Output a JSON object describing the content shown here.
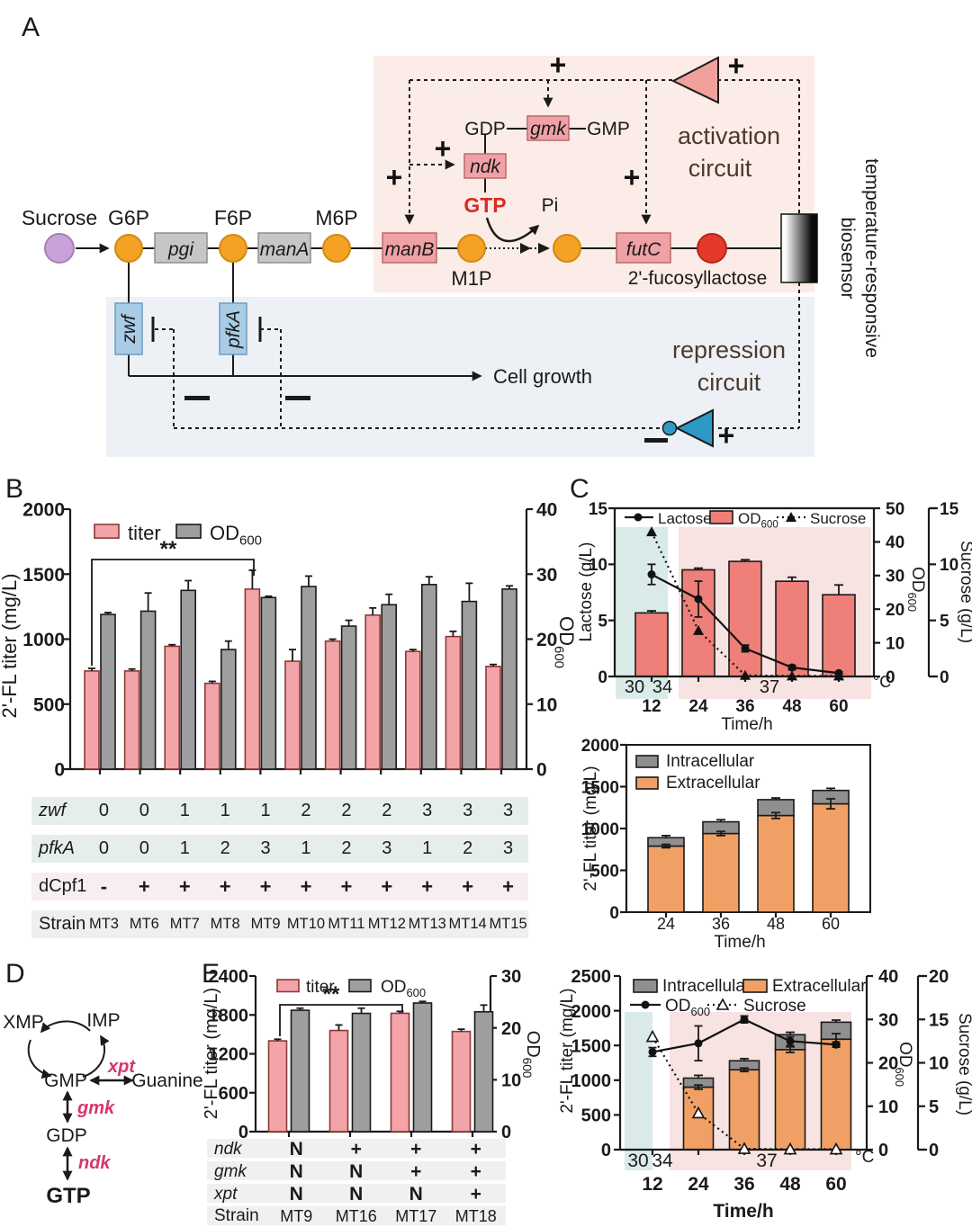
{
  "figure": {
    "panel_labels": {
      "A": "A",
      "B": "B",
      "C": "C",
      "D": "D",
      "E": "E"
    }
  },
  "panelA": {
    "metabolites": {
      "sucrose": "Sucrose",
      "g6p": "G6P",
      "f6p": "F6P",
      "m6p": "M6P",
      "m1p": "M1P",
      "gdp": "GDP",
      "gmp": "GMP",
      "gtp": "GTP",
      "pi": "Pi",
      "product": "2'-fucosyllactose",
      "cell_growth": "Cell growth"
    },
    "genes": {
      "pgi": "pgi",
      "manA": "manA",
      "manB": "manB",
      "futC": "futC",
      "gmk": "gmk",
      "ndk": "ndk",
      "zwf": "zwf",
      "pfkA": "pfkA"
    },
    "activation_line1": "activation",
    "activation_line2": "circuit",
    "repression_line1": "repression",
    "repression_line2": "circuit",
    "biosensor_line1": "temperature-responsive",
    "biosensor_line2": "biosensor",
    "plus": "+",
    "colors": {
      "activation_bg": "#fbece7",
      "repression_bg": "#edf1f5",
      "orange_node": "#f3a226",
      "purple_node": "#c8a2d8",
      "red_node": "#e4392b",
      "pink_gene": "#f0a1a6",
      "gray_gene": "#c6c6c6",
      "blue_gene": "#a9cce6",
      "act_triangle": "#f2a09c",
      "rep_triangle": "#2f99c5",
      "gtp_red": "#d92b1f"
    }
  },
  "panelD": {
    "xmp": "XMP",
    "imp": "IMP",
    "gmp": "GMP",
    "guanine": "Guanine",
    "gdp": "GDP",
    "gtp": "GTP",
    "xpt": "xpt",
    "gmk": "gmk",
    "ndk": "ndk",
    "gene_color": "#d6366f"
  },
  "tableB": {
    "rows": [
      {
        "label": "zwf",
        "italic": true,
        "bg": "#e6eeea",
        "values": [
          "0",
          "0",
          "1",
          "1",
          "1",
          "2",
          "2",
          "2",
          "3",
          "3",
          "3"
        ]
      },
      {
        "label": "pfkA",
        "italic": true,
        "bg": "#e6eeea",
        "values": [
          "0",
          "0",
          "1",
          "2",
          "3",
          "1",
          "2",
          "3",
          "1",
          "2",
          "3"
        ]
      },
      {
        "label": "dCpf1",
        "italic": false,
        "bg": "#f6eef1",
        "values": [
          "-",
          "+",
          "+",
          "+",
          "+",
          "+",
          "+",
          "+",
          "+",
          "+",
          "+"
        ]
      },
      {
        "label": "Strain",
        "italic": false,
        "bg": "#efeef0",
        "values": [
          "MT3",
          "MT6",
          "MT7",
          "MT8",
          "MT9",
          "MT10",
          "MT11",
          "MT12",
          "MT13",
          "MT14",
          "MT15"
        ]
      }
    ]
  },
  "tableE": {
    "rows": [
      {
        "label": "ndk",
        "italic": true,
        "bg": "#f0eff1",
        "values": [
          "N",
          "+",
          "+",
          "+"
        ]
      },
      {
        "label": "gmk",
        "italic": true,
        "bg": "#f0eff1",
        "values": [
          "N",
          "N",
          "+",
          "+"
        ]
      },
      {
        "label": "xpt",
        "italic": true,
        "bg": "#f0eff1",
        "values": [
          "N",
          "N",
          "N",
          "+"
        ]
      },
      {
        "label": "Strain",
        "italic": false,
        "bg": "#f0eff1",
        "values": [
          "MT9",
          "MT16",
          "MT17",
          "MT18"
        ]
      }
    ]
  },
  "chart_data": [
    {
      "id": "B",
      "type": "bar",
      "title": "",
      "ylabel": "2'-FL titer (mg/L)",
      "ylim": [
        0,
        2000
      ],
      "yticks": [
        0,
        500,
        1000,
        1500,
        2000
      ],
      "y2label": "OD600",
      "y2lim": [
        0,
        40
      ],
      "y2ticks": [
        0,
        10,
        20,
        30,
        40
      ],
      "categories": [
        "MT3",
        "MT6",
        "MT7",
        "MT8",
        "MT9",
        "MT10",
        "MT11",
        "MT12",
        "MT13",
        "MT14",
        "MT15"
      ],
      "series": [
        {
          "name": "titer",
          "axis": "left",
          "color": "#f2a4a9",
          "values": [
            755,
            755,
            945,
            660,
            1385,
            830,
            985,
            1185,
            905,
            1020,
            790
          ],
          "errors": [
            20,
            15,
            12,
            15,
            145,
            90,
            15,
            55,
            15,
            40,
            15
          ]
        },
        {
          "name": "OD600",
          "axis": "right",
          "color": "#9e9e9e",
          "values": [
            23.8,
            24.3,
            27.5,
            18.4,
            26.4,
            28.1,
            22.0,
            25.3,
            28.4,
            25.8,
            27.7
          ],
          "errors": [
            0.3,
            2.8,
            1.5,
            1.3,
            0.2,
            1.6,
            0.9,
            1.6,
            1.2,
            2.8,
            0.5
          ]
        }
      ],
      "significance": {
        "label": "**",
        "from": 0,
        "to": 4
      },
      "legend_position": "top-left",
      "grid": false
    },
    {
      "id": "C1",
      "type": "bar+line",
      "ylabel": "Lactose (g/L)",
      "ylim": [
        0,
        15
      ],
      "yticks": [
        0,
        5,
        10,
        15
      ],
      "y2label": "OD600",
      "y2lim": [
        0,
        50
      ],
      "y2ticks": [
        0,
        10,
        20,
        30,
        40,
        50
      ],
      "y3label": "Sucrose (g/L)",
      "y3lim": [
        0,
        15
      ],
      "y3ticks": [
        0,
        5,
        10,
        15
      ],
      "xlabel": "Time/h",
      "categories": [
        "12",
        "24",
        "36",
        "48",
        "60"
      ],
      "bars": {
        "name": "OD600",
        "axis": "y2",
        "color": "#ef7f79",
        "values": [
          18.9,
          31.7,
          34.2,
          28.3,
          24.3
        ],
        "errors": [
          0.6,
          0.5,
          0.5,
          1.2,
          2.9
        ]
      },
      "lines": [
        {
          "name": "Lactose",
          "axis": "y1",
          "marker": "circle",
          "style": "solid",
          "values": [
            9.1,
            6.9,
            2.5,
            0.8,
            0.3
          ],
          "errors": [
            0.9,
            1.6,
            0.3,
            0.2,
            0.1
          ]
        },
        {
          "name": "Sucrose",
          "axis": "y3",
          "marker": "triangle",
          "style": "dotted",
          "values": [
            12.9,
            4.1,
            0.1,
            0.05,
            0.05
          ],
          "errors": [
            0.4,
            0.4,
            0,
            0,
            0
          ]
        }
      ],
      "temperature_bands": {
        "labels": [
          "30",
          "34",
          "37"
        ],
        "unit": "°C",
        "teal": "#d9eae9",
        "pink": "#f7e3e1"
      }
    },
    {
      "id": "C2",
      "type": "stacked-bar",
      "ylabel": "2'-FL titer (mg/L)",
      "ylim": [
        0,
        2000
      ],
      "yticks": [
        0,
        500,
        1000,
        1500,
        2000
      ],
      "xlabel": "Time/h",
      "categories": [
        "24",
        "36",
        "48",
        "60"
      ],
      "series": [
        {
          "name": "Extracellular",
          "color": "#f0a064",
          "values": [
            790,
            940,
            1155,
            1295
          ],
          "errors": [
            20,
            25,
            35,
            60
          ]
        },
        {
          "name": "Intracellular",
          "color": "#8f8f8f",
          "values": [
            100,
            140,
            190,
            160
          ],
          "errors": [
            25,
            25,
            20,
            25
          ]
        }
      ]
    },
    {
      "id": "E",
      "type": "bar",
      "ylabel": "2'-FL titer (mg/L)",
      "ylim": [
        0,
        2400
      ],
      "yticks": [
        0,
        600,
        1200,
        1800,
        2400
      ],
      "y2label": "OD600",
      "y2lim": [
        0,
        30
      ],
      "y2ticks": [
        0,
        10,
        20,
        30
      ],
      "categories": [
        "MT9",
        "MT16",
        "MT17",
        "MT18"
      ],
      "series": [
        {
          "name": "titer",
          "axis": "left",
          "color": "#f2a4a9",
          "values": [
            1400,
            1560,
            1825,
            1545
          ],
          "errors": [
            25,
            85,
            30,
            35
          ]
        },
        {
          "name": "OD600",
          "axis": "right",
          "color": "#9e9e9e",
          "values": [
            23.4,
            22.8,
            24.8,
            23.1
          ],
          "errors": [
            0.4,
            1.0,
            0.3,
            1.3
          ]
        }
      ],
      "significance": {
        "label": "**",
        "from": 0,
        "to": 2
      }
    },
    {
      "id": "F",
      "type": "stacked-bar+line",
      "ylabel": "2'-FL titer (mg/L)",
      "ylim": [
        0,
        2500
      ],
      "yticks": [
        0,
        500,
        1000,
        1500,
        2000,
        2500
      ],
      "y2label": "OD600",
      "y2lim": [
        0,
        40
      ],
      "y2ticks": [
        0,
        10,
        20,
        30,
        40
      ],
      "y3label": "Sucrose (g/L)",
      "y3lim": [
        0,
        20
      ],
      "y3ticks": [
        0,
        5,
        10,
        15,
        20
      ],
      "xlabel": "Time/h",
      "categories": [
        "12",
        "24",
        "36",
        "48",
        "60"
      ],
      "series": [
        {
          "name": "Extracellular",
          "color": "#f0a064",
          "values": [
            null,
            900,
            1150,
            1440,
            1590
          ],
          "errors": [
            null,
            30,
            25,
            40,
            80
          ]
        },
        {
          "name": "Intracellular",
          "color": "#8f8f8f",
          "values": [
            null,
            130,
            130,
            215,
            245
          ],
          "errors": [
            null,
            40,
            30,
            35,
            30
          ]
        }
      ],
      "lines": [
        {
          "name": "OD600",
          "axis": "y2",
          "marker": "circle",
          "style": "solid",
          "values": [
            22.5,
            24.5,
            30,
            25,
            24.2
          ],
          "errors": [
            1,
            4,
            0.8,
            1,
            0.6
          ]
        },
        {
          "name": "Sucrose",
          "axis": "y3",
          "marker": "triangle-open",
          "style": "dotted",
          "values": [
            13,
            4.2,
            0.1,
            0.05,
            0.05
          ],
          "errors": [
            0.5,
            0.4,
            0,
            0,
            0
          ]
        }
      ],
      "temperature_bands": {
        "labels": [
          "30",
          "34",
          "37"
        ],
        "unit": "°C",
        "teal": "#d9eae9",
        "pink": "#f7e3e1"
      }
    }
  ]
}
